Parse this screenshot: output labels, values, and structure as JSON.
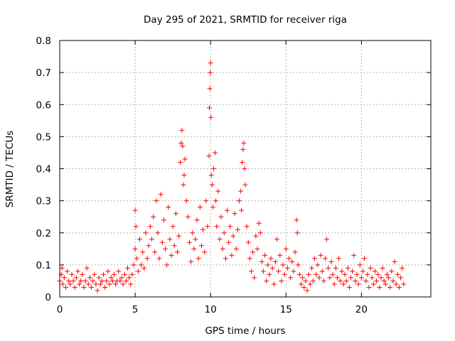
{
  "chart_data": {
    "type": "scatter",
    "title": "Day 295 of 2021, SRMTID for receiver riga",
    "xlabel": "GPS time / hours",
    "ylabel": "SRMTID / TECUs",
    "xlim": [
      0,
      24.6
    ],
    "ylim": [
      0,
      0.8
    ],
    "xticks": [
      "0",
      "5",
      "10",
      "15",
      "20"
    ],
    "xtick_values": [
      0,
      5,
      10,
      15,
      20
    ],
    "yticks": [
      "0",
      "0.1",
      "0.2",
      "0.3",
      "0.4",
      "0.5",
      "0.6",
      "0.7",
      "0.8"
    ],
    "ytick_values": [
      0,
      0.1,
      0.2,
      0.3,
      0.4,
      0.5,
      0.6,
      0.7,
      0.8
    ],
    "grid": true,
    "marker": "+",
    "color": "#ff0000",
    "series": [
      {
        "name": "SRMTID",
        "points": [
          [
            0.0,
            0.05
          ],
          [
            0.1,
            0.07
          ],
          [
            0.15,
            0.09
          ],
          [
            0.2,
            0.04
          ],
          [
            0.3,
            0.06
          ],
          [
            0.4,
            0.03
          ],
          [
            0.5,
            0.08
          ],
          [
            0.6,
            0.05
          ],
          [
            0.7,
            0.04
          ],
          [
            0.8,
            0.07
          ],
          [
            0.9,
            0.05
          ],
          [
            1.0,
            0.03
          ],
          [
            1.1,
            0.06
          ],
          [
            1.2,
            0.08
          ],
          [
            1.3,
            0.04
          ],
          [
            1.4,
            0.05
          ],
          [
            1.5,
            0.07
          ],
          [
            1.6,
            0.03
          ],
          [
            1.7,
            0.05
          ],
          [
            1.8,
            0.09
          ],
          [
            1.9,
            0.04
          ],
          [
            2.0,
            0.06
          ],
          [
            2.1,
            0.03
          ],
          [
            2.2,
            0.05
          ],
          [
            2.3,
            0.07
          ],
          [
            2.4,
            0.04
          ],
          [
            2.5,
            0.02
          ],
          [
            2.6,
            0.06
          ],
          [
            2.7,
            0.04
          ],
          [
            2.8,
            0.05
          ],
          [
            2.9,
            0.07
          ],
          [
            3.0,
            0.03
          ],
          [
            3.1,
            0.05
          ],
          [
            3.2,
            0.08
          ],
          [
            3.3,
            0.04
          ],
          [
            3.4,
            0.06
          ],
          [
            3.5,
            0.05
          ],
          [
            3.6,
            0.07
          ],
          [
            3.7,
            0.04
          ],
          [
            3.8,
            0.05
          ],
          [
            3.9,
            0.08
          ],
          [
            4.0,
            0.05
          ],
          [
            4.1,
            0.06
          ],
          [
            4.2,
            0.04
          ],
          [
            4.3,
            0.07
          ],
          [
            4.4,
            0.05
          ],
          [
            4.5,
            0.09
          ],
          [
            4.6,
            0.06
          ],
          [
            4.7,
            0.04
          ],
          [
            4.8,
            0.07
          ],
          [
            4.9,
            0.1
          ],
          [
            5.0,
            0.27
          ],
          [
            5.0,
            0.15
          ],
          [
            5.05,
            0.22
          ],
          [
            5.1,
            0.12
          ],
          [
            5.2,
            0.08
          ],
          [
            5.3,
            0.18
          ],
          [
            5.4,
            0.1
          ],
          [
            5.5,
            0.14
          ],
          [
            5.6,
            0.09
          ],
          [
            5.7,
            0.2
          ],
          [
            5.8,
            0.12
          ],
          [
            5.9,
            0.16
          ],
          [
            6.0,
            0.22
          ],
          [
            6.1,
            0.18
          ],
          [
            6.2,
            0.25
          ],
          [
            6.3,
            0.14
          ],
          [
            6.4,
            0.3
          ],
          [
            6.5,
            0.2
          ],
          [
            6.6,
            0.12
          ],
          [
            6.7,
            0.32
          ],
          [
            6.8,
            0.17
          ],
          [
            6.9,
            0.24
          ],
          [
            7.0,
            0.15
          ],
          [
            7.1,
            0.1
          ],
          [
            7.2,
            0.28
          ],
          [
            7.3,
            0.18
          ],
          [
            7.4,
            0.13
          ],
          [
            7.5,
            0.22
          ],
          [
            7.6,
            0.16
          ],
          [
            7.7,
            0.26
          ],
          [
            7.8,
            0.14
          ],
          [
            7.9,
            0.19
          ],
          [
            8.0,
            0.42
          ],
          [
            8.05,
            0.48
          ],
          [
            8.1,
            0.52
          ],
          [
            8.15,
            0.47
          ],
          [
            8.2,
            0.35
          ],
          [
            8.25,
            0.38
          ],
          [
            8.3,
            0.43
          ],
          [
            8.4,
            0.3
          ],
          [
            8.5,
            0.25
          ],
          [
            8.6,
            0.17
          ],
          [
            8.7,
            0.11
          ],
          [
            8.8,
            0.2
          ],
          [
            8.9,
            0.15
          ],
          [
            9.0,
            0.18
          ],
          [
            9.1,
            0.24
          ],
          [
            9.2,
            0.12
          ],
          [
            9.3,
            0.28
          ],
          [
            9.4,
            0.16
          ],
          [
            9.5,
            0.21
          ],
          [
            9.6,
            0.14
          ],
          [
            9.7,
            0.3
          ],
          [
            9.8,
            0.22
          ],
          [
            9.9,
            0.44
          ],
          [
            9.92,
            0.59
          ],
          [
            9.95,
            0.65
          ],
          [
            9.98,
            0.7
          ],
          [
            10.0,
            0.73
          ],
          [
            10.02,
            0.56
          ],
          [
            10.05,
            0.38
          ],
          [
            10.1,
            0.35
          ],
          [
            10.15,
            0.28
          ],
          [
            10.2,
            0.4
          ],
          [
            10.3,
            0.45
          ],
          [
            10.35,
            0.3
          ],
          [
            10.4,
            0.22
          ],
          [
            10.5,
            0.33
          ],
          [
            10.6,
            0.18
          ],
          [
            10.7,
            0.25
          ],
          [
            10.8,
            0.15
          ],
          [
            10.9,
            0.2
          ],
          [
            11.0,
            0.12
          ],
          [
            11.1,
            0.27
          ],
          [
            11.2,
            0.17
          ],
          [
            11.3,
            0.22
          ],
          [
            11.4,
            0.13
          ],
          [
            11.5,
            0.19
          ],
          [
            11.6,
            0.26
          ],
          [
            11.7,
            0.15
          ],
          [
            11.8,
            0.21
          ],
          [
            11.9,
            0.3
          ],
          [
            12.0,
            0.33
          ],
          [
            12.05,
            0.27
          ],
          [
            12.1,
            0.42
          ],
          [
            12.15,
            0.46
          ],
          [
            12.2,
            0.48
          ],
          [
            12.25,
            0.4
          ],
          [
            12.3,
            0.35
          ],
          [
            12.4,
            0.22
          ],
          [
            12.5,
            0.17
          ],
          [
            12.6,
            0.12
          ],
          [
            12.7,
            0.08
          ],
          [
            12.8,
            0.14
          ],
          [
            12.9,
            0.06
          ],
          [
            13.0,
            0.19
          ],
          [
            13.1,
            0.15
          ],
          [
            13.2,
            0.23
          ],
          [
            13.3,
            0.2
          ],
          [
            13.4,
            0.11
          ],
          [
            13.5,
            0.08
          ],
          [
            13.6,
            0.13
          ],
          [
            13.7,
            0.05
          ],
          [
            13.8,
            0.1
          ],
          [
            13.9,
            0.07
          ],
          [
            14.0,
            0.12
          ],
          [
            14.1,
            0.09
          ],
          [
            14.2,
            0.04
          ],
          [
            14.3,
            0.11
          ],
          [
            14.4,
            0.18
          ],
          [
            14.5,
            0.08
          ],
          [
            14.6,
            0.13
          ],
          [
            14.7,
            0.05
          ],
          [
            14.8,
            0.1
          ],
          [
            14.9,
            0.07
          ],
          [
            15.0,
            0.15
          ],
          [
            15.1,
            0.09
          ],
          [
            15.2,
            0.12
          ],
          [
            15.3,
            0.06
          ],
          [
            15.4,
            0.11
          ],
          [
            15.5,
            0.08
          ],
          [
            15.6,
            0.14
          ],
          [
            15.7,
            0.24
          ],
          [
            15.75,
            0.2
          ],
          [
            15.8,
            0.1
          ],
          [
            15.9,
            0.07
          ],
          [
            16.0,
            0.04
          ],
          [
            16.1,
            0.06
          ],
          [
            16.2,
            0.03
          ],
          [
            16.3,
            0.05
          ],
          [
            16.4,
            0.02
          ],
          [
            16.5,
            0.07
          ],
          [
            16.6,
            0.04
          ],
          [
            16.7,
            0.09
          ],
          [
            16.8,
            0.05
          ],
          [
            16.9,
            0.12
          ],
          [
            17.0,
            0.07
          ],
          [
            17.1,
            0.1
          ],
          [
            17.2,
            0.06
          ],
          [
            17.3,
            0.13
          ],
          [
            17.4,
            0.08
          ],
          [
            17.5,
            0.05
          ],
          [
            17.6,
            0.12
          ],
          [
            17.7,
            0.18
          ],
          [
            17.8,
            0.09
          ],
          [
            17.9,
            0.06
          ],
          [
            18.0,
            0.11
          ],
          [
            18.1,
            0.07
          ],
          [
            18.2,
            0.04
          ],
          [
            18.3,
            0.09
          ],
          [
            18.4,
            0.06
          ],
          [
            18.5,
            0.12
          ],
          [
            18.6,
            0.05
          ],
          [
            18.7,
            0.08
          ],
          [
            18.8,
            0.04
          ],
          [
            18.9,
            0.07
          ],
          [
            19.0,
            0.05
          ],
          [
            19.1,
            0.09
          ],
          [
            19.2,
            0.03
          ],
          [
            19.3,
            0.06
          ],
          [
            19.4,
            0.08
          ],
          [
            19.5,
            0.13
          ],
          [
            19.6,
            0.05
          ],
          [
            19.7,
            0.07
          ],
          [
            19.8,
            0.04
          ],
          [
            19.9,
            0.1
          ],
          [
            20.0,
            0.06
          ],
          [
            20.1,
            0.08
          ],
          [
            20.2,
            0.12
          ],
          [
            20.3,
            0.05
          ],
          [
            20.4,
            0.07
          ],
          [
            20.5,
            0.03
          ],
          [
            20.6,
            0.09
          ],
          [
            20.7,
            0.06
          ],
          [
            20.8,
            0.04
          ],
          [
            20.9,
            0.08
          ],
          [
            21.0,
            0.05
          ],
          [
            21.1,
            0.07
          ],
          [
            21.2,
            0.03
          ],
          [
            21.3,
            0.06
          ],
          [
            21.4,
            0.09
          ],
          [
            21.5,
            0.05
          ],
          [
            21.6,
            0.04
          ],
          [
            21.7,
            0.07
          ],
          [
            21.8,
            0.06
          ],
          [
            21.9,
            0.03
          ],
          [
            22.0,
            0.08
          ],
          [
            22.1,
            0.05
          ],
          [
            22.2,
            0.11
          ],
          [
            22.3,
            0.04
          ],
          [
            22.4,
            0.07
          ],
          [
            22.5,
            0.03
          ],
          [
            22.6,
            0.06
          ],
          [
            22.7,
            0.09
          ],
          [
            22.8,
            0.04
          ]
        ]
      }
    ]
  }
}
